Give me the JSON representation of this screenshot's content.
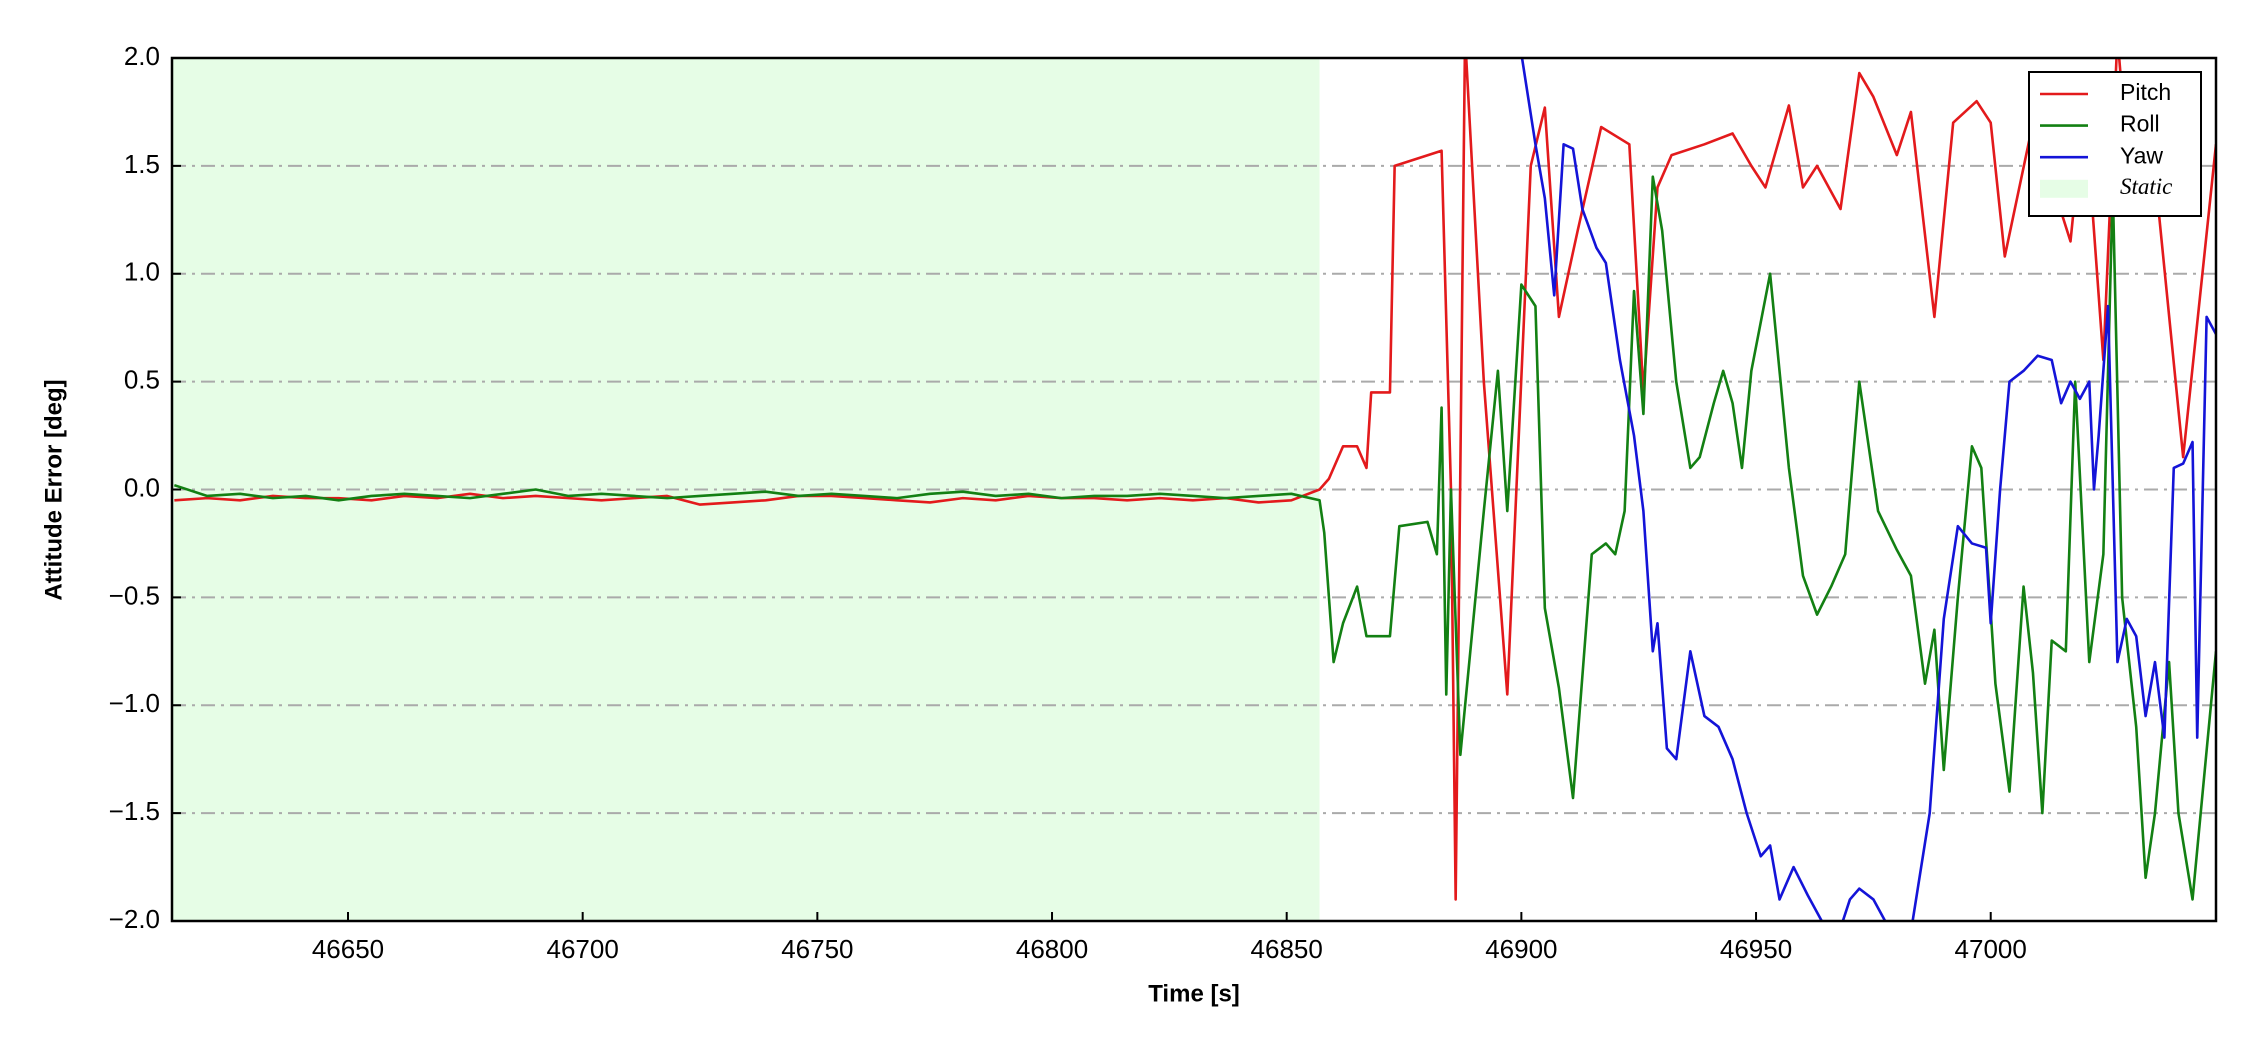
{
  "chart_data": {
    "type": "line",
    "xlabel": "Time [s]",
    "ylabel": "Attitude Error [deg]",
    "xlim": [
      46612.5,
      47048
    ],
    "ylim": [
      -2.0,
      2.0
    ],
    "xticks": [
      46650,
      46700,
      46750,
      46800,
      46850,
      46900,
      46950,
      47000
    ],
    "yticks": [
      {
        "value": -2.0,
        "label": "−2.0"
      },
      {
        "value": -1.5,
        "label": "−1.5"
      },
      {
        "value": -1.0,
        "label": "−1.0"
      },
      {
        "value": -0.5,
        "label": "−0.5"
      },
      {
        "value": 0.0,
        "label": "0.0"
      },
      {
        "value": 0.5,
        "label": "0.5"
      },
      {
        "value": 1.0,
        "label": "1.0"
      },
      {
        "value": 1.5,
        "label": "1.5"
      },
      {
        "value": 2.0,
        "label": "2.0"
      }
    ],
    "grid": true,
    "legend": "upper right",
    "static": {
      "label": "Static",
      "span": [
        46612.5,
        46857
      ],
      "color": "#e6fde6"
    },
    "series": [
      {
        "name": "Pitch",
        "color": "#e31a1c",
        "x": [
          46613,
          46620,
          46627,
          46634,
          46641,
          46648,
          46655,
          46662,
          46669,
          46676,
          46683,
          46690,
          46697,
          46704,
          46711,
          46718,
          46725,
          46732,
          46739,
          46746,
          46753,
          46760,
          46767,
          46774,
          46781,
          46788,
          46795,
          46802,
          46809,
          46816,
          46823,
          46830,
          46837,
          46844,
          46851,
          46857,
          46859,
          46862,
          46865,
          46867,
          46868,
          46872,
          46873,
          46883,
          46885,
          46886,
          46888,
          46892,
          46897,
          46902,
          46905,
          46908,
          46912,
          46917,
          46923,
          46926,
          46929,
          46932,
          46939,
          46945,
          46949,
          46952,
          46957,
          46960,
          46963,
          46968,
          46972,
          46975,
          46980,
          46983,
          46988,
          46992,
          46997,
          47000,
          47003,
          47009,
          47017,
          47020,
          47024,
          47027,
          47030,
          47033,
          47041,
          47048
        ],
        "values": [
          -0.05,
          -0.04,
          -0.05,
          -0.03,
          -0.04,
          -0.04,
          -0.05,
          -0.03,
          -0.04,
          -0.02,
          -0.04,
          -0.03,
          -0.04,
          -0.05,
          -0.04,
          -0.03,
          -0.07,
          -0.06,
          -0.05,
          -0.03,
          -0.03,
          -0.04,
          -0.05,
          -0.06,
          -0.04,
          -0.05,
          -0.03,
          -0.04,
          -0.04,
          -0.05,
          -0.04,
          -0.05,
          -0.04,
          -0.06,
          -0.05,
          0.0,
          0.05,
          0.2,
          0.2,
          0.1,
          0.45,
          0.45,
          1.5,
          1.57,
          0.0,
          -1.9,
          2.1,
          0.5,
          -0.95,
          1.5,
          1.77,
          0.8,
          1.2,
          1.68,
          1.6,
          0.45,
          1.4,
          1.55,
          1.6,
          1.65,
          1.5,
          1.4,
          1.78,
          1.4,
          1.5,
          1.3,
          1.93,
          1.82,
          1.55,
          1.75,
          0.8,
          1.7,
          1.8,
          1.7,
          1.08,
          1.7,
          1.15,
          1.8,
          0.6,
          2.1,
          1.3,
          1.9,
          0.15,
          1.6
        ]
      },
      {
        "name": "Roll",
        "color": "#138013",
        "x": [
          46613,
          46620,
          46627,
          46634,
          46641,
          46648,
          46655,
          46662,
          46669,
          46676,
          46683,
          46690,
          46697,
          46704,
          46711,
          46718,
          46725,
          46732,
          46739,
          46746,
          46753,
          46760,
          46767,
          46774,
          46781,
          46788,
          46795,
          46802,
          46809,
          46816,
          46823,
          46830,
          46837,
          46844,
          46851,
          46857,
          46858,
          46860,
          46862,
          46865,
          46867,
          46872,
          46874,
          46880,
          46882,
          46883,
          46884,
          46885,
          46887,
          46892,
          46895,
          46897,
          46900,
          46903,
          46905,
          46908,
          46911,
          46915,
          46918,
          46920,
          46922,
          46924,
          46926,
          46928,
          46930,
          46933,
          46936,
          46938,
          46941,
          46943,
          46945,
          46947,
          46949,
          46953,
          46957,
          46960,
          46963,
          46966,
          46969,
          46972,
          46976,
          46980,
          46983,
          46986,
          46988,
          46990,
          46993,
          46996,
          46998,
          47001,
          47004,
          47007,
          47009,
          47011,
          47013,
          47016,
          47018,
          47021,
          47024,
          47026,
          47028,
          47031,
          47033,
          47035,
          47038,
          47040,
          47043,
          47048
        ],
        "values": [
          0.02,
          -0.03,
          -0.02,
          -0.04,
          -0.03,
          -0.05,
          -0.03,
          -0.02,
          -0.03,
          -0.04,
          -0.02,
          0.0,
          -0.03,
          -0.02,
          -0.03,
          -0.04,
          -0.03,
          -0.02,
          -0.01,
          -0.03,
          -0.02,
          -0.03,
          -0.04,
          -0.02,
          -0.01,
          -0.03,
          -0.02,
          -0.04,
          -0.03,
          -0.03,
          -0.02,
          -0.03,
          -0.04,
          -0.03,
          -0.02,
          -0.05,
          -0.2,
          -0.8,
          -0.62,
          -0.45,
          -0.68,
          -0.68,
          -0.17,
          -0.15,
          -0.3,
          0.38,
          -0.95,
          0.0,
          -1.23,
          -0.1,
          0.55,
          -0.1,
          0.95,
          0.85,
          -0.55,
          -0.92,
          -1.43,
          -0.3,
          -0.25,
          -0.3,
          -0.1,
          0.92,
          0.35,
          1.45,
          1.2,
          0.5,
          0.1,
          0.15,
          0.4,
          0.55,
          0.4,
          0.1,
          0.55,
          1.0,
          0.1,
          -0.4,
          -0.58,
          -0.45,
          -0.3,
          0.5,
          -0.1,
          -0.28,
          -0.4,
          -0.9,
          -0.65,
          -1.3,
          -0.5,
          0.2,
          0.1,
          -0.9,
          -1.4,
          -0.45,
          -0.85,
          -1.5,
          -0.7,
          -0.75,
          0.5,
          -0.8,
          -0.3,
          1.4,
          -0.5,
          -1.1,
          -1.8,
          -1.5,
          -0.8,
          -1.5,
          -1.9,
          -0.75
        ]
      },
      {
        "name": "Yaw",
        "color": "#1414d8",
        "x": [
          46898,
          46903,
          46905,
          46907,
          46909,
          46911,
          46913,
          46916,
          46918,
          46921,
          46924,
          46926,
          46928,
          46929,
          46931,
          46933,
          46936,
          46939,
          46942,
          46945,
          46948,
          46951,
          46953,
          46955,
          46958,
          46961,
          46964,
          46967,
          46970,
          46972,
          46975,
          46977,
          46980,
          46983,
          46987,
          46990,
          46993,
          46996,
          46999,
          47000,
          47002,
          47004,
          47007,
          47010,
          47013,
          47015,
          47017,
          47019,
          47021,
          47022,
          47023,
          47025,
          47027,
          47029,
          47031,
          47033,
          47035,
          47037,
          47039,
          47041,
          47043,
          47044,
          47046,
          47048
        ],
        "values": [
          2.3,
          1.6,
          1.35,
          0.9,
          1.6,
          1.58,
          1.3,
          1.12,
          1.05,
          0.6,
          0.25,
          -0.1,
          -0.75,
          -0.62,
          -1.2,
          -1.25,
          -0.75,
          -1.05,
          -1.1,
          -1.25,
          -1.5,
          -1.7,
          -1.65,
          -1.9,
          -1.75,
          -1.88,
          -2.0,
          -2.1,
          -1.9,
          -1.85,
          -1.9,
          -1.98,
          -2.1,
          -2.05,
          -1.5,
          -0.6,
          -0.17,
          -0.25,
          -0.27,
          -0.62,
          0.0,
          0.5,
          0.55,
          0.62,
          0.6,
          0.4,
          0.5,
          0.42,
          0.5,
          0.0,
          0.25,
          0.85,
          -0.8,
          -0.6,
          -0.68,
          -1.05,
          -0.8,
          -1.15,
          0.1,
          0.12,
          0.22,
          -1.15,
          0.8,
          0.72
        ]
      }
    ]
  }
}
